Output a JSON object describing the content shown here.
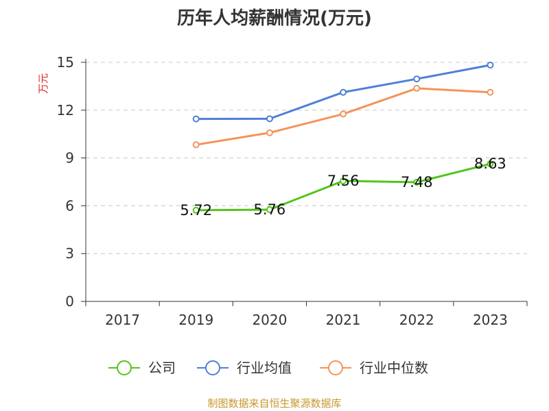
{
  "chart_data": {
    "type": "line",
    "title": "历年人均薪酬情况(万元)",
    "ylabel": "万元",
    "xlabel": "",
    "categories": [
      "2017",
      "2019",
      "2020",
      "2021",
      "2022",
      "2023"
    ],
    "ylim": [
      0,
      15
    ],
    "yticks": [
      0,
      3,
      6,
      9,
      12,
      15
    ],
    "grid": true,
    "legend_position": "bottom",
    "series": [
      {
        "name": "公司",
        "color": "#52c41a",
        "values": [
          null,
          5.72,
          5.76,
          7.56,
          7.48,
          8.63
        ],
        "show_labels": true
      },
      {
        "name": "行业均值",
        "color": "#4d7fd8",
        "values": [
          null,
          11.45,
          11.46,
          13.12,
          13.96,
          14.83
        ],
        "show_labels": false
      },
      {
        "name": "行业中位数",
        "color": "#f4935a",
        "values": [
          null,
          9.83,
          10.58,
          11.76,
          13.37,
          13.12
        ],
        "show_labels": false
      }
    ]
  },
  "source_note": "制图数据来自恒生聚源数据库"
}
